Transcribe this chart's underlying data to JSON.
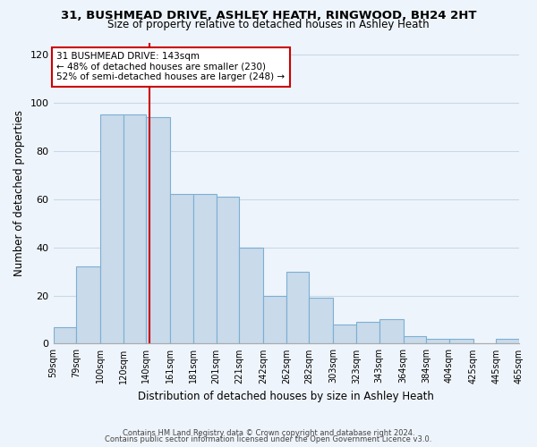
{
  "title_line1": "31, BUSHMEAD DRIVE, ASHLEY HEATH, RINGWOOD, BH24 2HT",
  "title_line2": "Size of property relative to detached houses in Ashley Heath",
  "xlabel": "Distribution of detached houses by size in Ashley Heath",
  "ylabel": "Number of detached properties",
  "bar_edges": [
    59,
    79,
    100,
    120,
    140,
    161,
    181,
    201,
    221,
    242,
    262,
    282,
    303,
    323,
    343,
    364,
    384,
    404,
    425,
    445,
    465
  ],
  "bar_heights": [
    7,
    32,
    95,
    95,
    94,
    62,
    62,
    61,
    40,
    20,
    30,
    19,
    8,
    9,
    10,
    3,
    2,
    2,
    0,
    2
  ],
  "bar_color": "#c9daea",
  "bar_edge_color": "#7bafd4",
  "property_size": 143,
  "vline_color": "#cc0000",
  "annotation_text": "31 BUSHMEAD DRIVE: 143sqm\n← 48% of detached houses are smaller (230)\n52% of semi-detached houses are larger (248) →",
  "annotation_box_color": "white",
  "annotation_box_edge": "#cc0000",
  "ylim": [
    0,
    125
  ],
  "yticks": [
    0,
    20,
    40,
    60,
    80,
    100,
    120
  ],
  "grid_color": "#c8d8e8",
  "footnote1": "Contains HM Land Registry data © Crown copyright and database right 2024.",
  "footnote2": "Contains public sector information licensed under the Open Government Licence v3.0.",
  "bg_color": "#eef4fb"
}
